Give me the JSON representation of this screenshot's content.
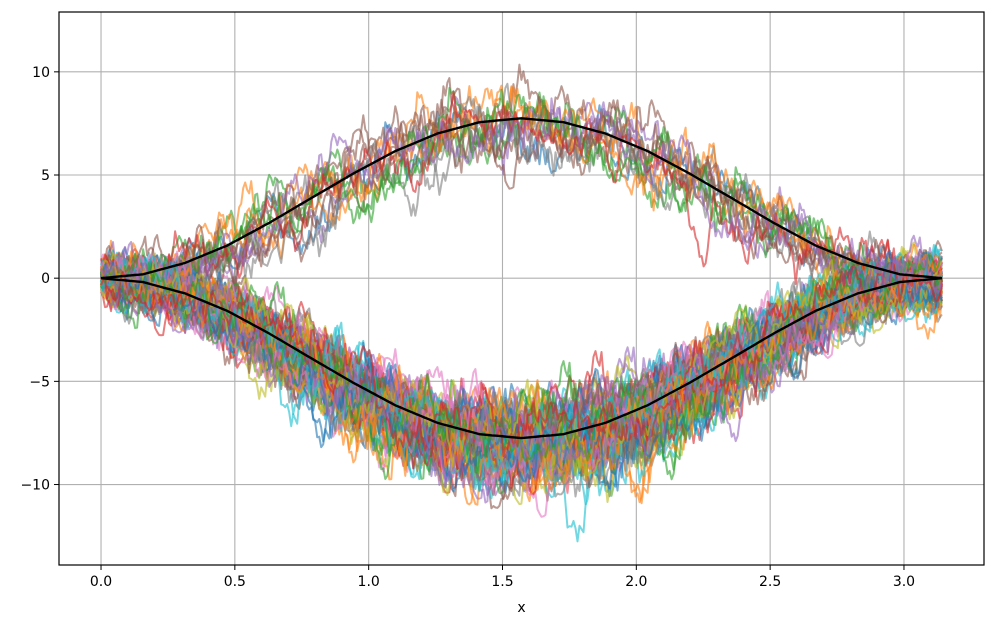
{
  "chart_data": {
    "type": "line",
    "title": "",
    "xlabel": "x",
    "ylabel": "",
    "xlim": [
      -0.157,
      3.299
    ],
    "ylim": [
      -13.9,
      12.9
    ],
    "xticks": [
      0.0,
      0.5,
      1.0,
      1.5,
      2.0,
      2.5,
      3.0
    ],
    "xtick_labels": [
      "0.0",
      "0.5",
      "1.0",
      "1.5",
      "2.0",
      "2.5",
      "3.0"
    ],
    "yticks": [
      -10,
      -5,
      0,
      5,
      10
    ],
    "ytick_labels": [
      "−10",
      "−5",
      "0",
      "5",
      "10"
    ],
    "grid": true,
    "legend": "none",
    "sample_paths": {
      "x_range": [
        0.0,
        3.1416
      ],
      "upper_group_count": 15,
      "lower_group_count": 90,
      "amplitude": 7.75,
      "noise_std": 1.6,
      "opacity": 0.6,
      "palette": [
        "#1f77b4",
        "#ff7f0e",
        "#2ca02c",
        "#d62728",
        "#9467bd",
        "#8c564b",
        "#e377c2",
        "#7f7f7f",
        "#bcbd22",
        "#17becf"
      ]
    },
    "series": [
      {
        "color": "#000000",
        "x": [
          0.0,
          0.1571,
          0.3142,
          0.4712,
          0.6283,
          0.7854,
          0.9425,
          1.0996,
          1.2566,
          1.4137,
          1.5708,
          1.7279,
          1.885,
          2.042,
          2.1991,
          2.3562,
          2.5133,
          2.6704,
          2.8274,
          2.9845,
          3.1416
        ],
        "y": [
          0.0,
          0.19,
          0.74,
          1.58,
          2.68,
          3.88,
          5.07,
          6.16,
          7.01,
          7.56,
          7.75,
          7.56,
          7.01,
          6.16,
          5.07,
          3.88,
          2.68,
          1.58,
          0.74,
          0.19,
          0.0
        ]
      },
      {
        "color": "#000000",
        "x": [
          0.0,
          0.1571,
          0.3142,
          0.4712,
          0.6283,
          0.7854,
          0.9425,
          1.0996,
          1.2566,
          1.4137,
          1.5708,
          1.7279,
          1.885,
          2.042,
          2.1991,
          2.3562,
          2.5133,
          2.6704,
          2.8274,
          2.9845,
          3.1416
        ],
        "y": [
          0.0,
          -0.19,
          -0.74,
          -1.58,
          -2.68,
          -3.88,
          -5.07,
          -6.16,
          -7.01,
          -7.56,
          -7.75,
          -7.56,
          -7.01,
          -6.16,
          -5.07,
          -3.88,
          -2.68,
          -1.58,
          -0.74,
          -0.19,
          0.0
        ]
      }
    ]
  }
}
